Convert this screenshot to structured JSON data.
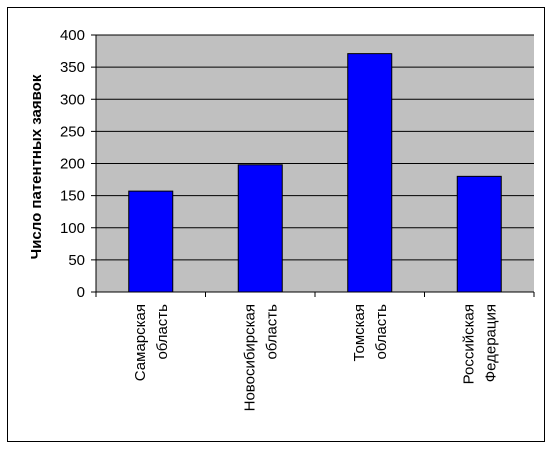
{
  "chart_data": {
    "type": "bar",
    "title": "",
    "xlabel": "",
    "ylabel": "Число патентных заявок",
    "categories": [
      [
        "Самарская",
        "область"
      ],
      [
        "Новосибирская",
        "область"
      ],
      [
        "Томская",
        "область"
      ],
      [
        "Российская",
        "Федерация"
      ]
    ],
    "values": [
      157,
      198,
      371,
      180
    ],
    "ylim": [
      0,
      400
    ],
    "yticks": [
      0,
      50,
      100,
      150,
      200,
      250,
      300,
      350,
      400
    ],
    "grid": true,
    "legend": "none",
    "colors": {
      "bar": "#0000FF",
      "plot_background": "#C0C0C0",
      "gridline": "#000000"
    }
  }
}
